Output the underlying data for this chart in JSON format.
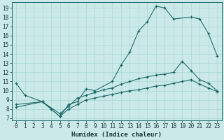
{
  "xlabel": "Humidex (Indice chaleur)",
  "xlim": [
    -0.5,
    23.5
  ],
  "ylim": [
    6.8,
    19.6
  ],
  "xticks": [
    0,
    1,
    2,
    3,
    4,
    5,
    6,
    7,
    8,
    9,
    10,
    11,
    12,
    13,
    14,
    15,
    16,
    17,
    18,
    19,
    20,
    21,
    22,
    23
  ],
  "yticks": [
    7,
    8,
    9,
    10,
    11,
    12,
    13,
    14,
    15,
    16,
    17,
    18,
    19
  ],
  "bg_color": "#cbe9e9",
  "line_color": "#1a6666",
  "grid_color": "#a8d8d0",
  "curve1_x": [
    0,
    1,
    3,
    4,
    5,
    6,
    7,
    8,
    9,
    11,
    12,
    13,
    14,
    15,
    16,
    17,
    18,
    20,
    21,
    22,
    23
  ],
  "curve1_y": [
    10.8,
    9.5,
    8.8,
    8.0,
    7.2,
    8.5,
    8.8,
    10.2,
    10.0,
    11.0,
    12.8,
    14.2,
    16.5,
    17.5,
    19.2,
    19.0,
    17.8,
    18.0,
    17.8,
    16.2,
    13.8
  ],
  "curve2_x": [
    0,
    3,
    5,
    6,
    7,
    8,
    9,
    10,
    11,
    12,
    13,
    14,
    15,
    16,
    17,
    18,
    19,
    20,
    21,
    22,
    23
  ],
  "curve2_y": [
    8.5,
    8.8,
    7.5,
    8.3,
    9.2,
    9.5,
    9.8,
    10.1,
    10.3,
    10.7,
    11.0,
    11.3,
    11.5,
    11.7,
    11.8,
    12.0,
    13.2,
    12.2,
    11.2,
    10.8,
    10.0
  ],
  "curve3_x": [
    0,
    3,
    5,
    6,
    7,
    8,
    9,
    10,
    11,
    12,
    13,
    14,
    15,
    16,
    17,
    18,
    19,
    20,
    21,
    22,
    23
  ],
  "curve3_y": [
    8.2,
    8.8,
    7.2,
    8.0,
    8.5,
    9.0,
    9.2,
    9.4,
    9.6,
    9.8,
    10.0,
    10.1,
    10.3,
    10.5,
    10.6,
    10.8,
    11.0,
    11.2,
    10.7,
    10.3,
    9.9
  ],
  "tick_fontsize": 5.5,
  "xlabel_fontsize": 6.5
}
